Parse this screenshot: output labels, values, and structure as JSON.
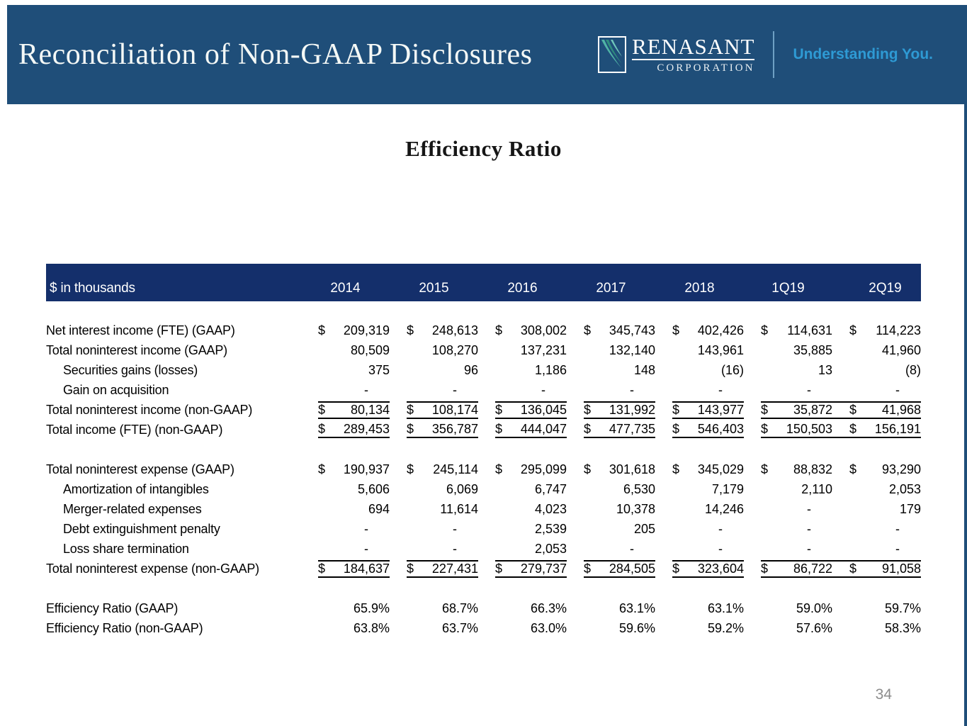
{
  "banner": {
    "title": "Reconciliation of Non-GAAP Disclosures"
  },
  "logo": {
    "brand": "RENASANT",
    "brand_sub": "CORPORATION",
    "tagline": "Understanding You.",
    "mark": "feather-swoosh-icon"
  },
  "section_title": "Efficiency Ratio",
  "page_number": "34",
  "colors": {
    "banner_blue": "#1F4E79",
    "table_header_navy": "#142F6B",
    "tagline_blue": "#2E9AD4",
    "logo_teal": "#4FB3A5",
    "page_number_gray": "#8C8C8C"
  },
  "table": {
    "unit_label": "$ in thousands",
    "columns": [
      "2014",
      "2015",
      "2016",
      "2017",
      "2018",
      "1Q19",
      "2Q19"
    ],
    "rows": [
      {
        "label": "Net interest income (FTE) (GAAP)",
        "indent": false,
        "dollar": true,
        "style": "none",
        "values": [
          "209,319",
          "248,613",
          "308,002",
          "345,743",
          "402,426",
          "114,631",
          "114,223"
        ]
      },
      {
        "label": "Total noninterest income (GAAP)",
        "indent": false,
        "dollar": false,
        "style": "none",
        "values": [
          "80,509",
          "108,270",
          "137,231",
          "132,140",
          "143,961",
          "35,885",
          "41,960"
        ]
      },
      {
        "label": "Securities gains (losses)",
        "indent": true,
        "dollar": false,
        "style": "none",
        "values": [
          "375",
          "96",
          "1,186",
          "148",
          "(16)",
          "13",
          "(8)"
        ]
      },
      {
        "label": "Gain on acquisition",
        "indent": true,
        "dollar": false,
        "style": "none",
        "values": [
          "-",
          "-",
          "-",
          "-",
          "-",
          "-",
          "-"
        ]
      },
      {
        "label": "Total noninterest income (non-GAAP)",
        "indent": false,
        "dollar": true,
        "style": "top-bottom",
        "values": [
          "80,134",
          "108,174",
          "136,045",
          "131,992",
          "143,977",
          "35,872",
          "41,968"
        ]
      },
      {
        "label": "Total income (FTE) (non-GAAP)",
        "indent": false,
        "dollar": true,
        "style": "bottom",
        "values": [
          "289,453",
          "356,787",
          "444,047",
          "477,735",
          "546,403",
          "150,503",
          "156,191"
        ]
      },
      {
        "label": "",
        "spacer": true
      },
      {
        "label": "Total noninterest expense (GAAP)",
        "indent": false,
        "dollar": true,
        "style": "none",
        "values": [
          "190,937",
          "245,114",
          "295,099",
          "301,618",
          "345,029",
          "88,832",
          "93,290"
        ]
      },
      {
        "label": "Amortization of intangibles",
        "indent": true,
        "dollar": false,
        "style": "none",
        "values": [
          "5,606",
          "6,069",
          "6,747",
          "6,530",
          "7,179",
          "2,110",
          "2,053"
        ]
      },
      {
        "label": "Merger-related expenses",
        "indent": true,
        "dollar": false,
        "style": "none",
        "values": [
          "694",
          "11,614",
          "4,023",
          "10,378",
          "14,246",
          "-",
          "179"
        ]
      },
      {
        "label": "Debt extinguishment penalty",
        "indent": true,
        "dollar": false,
        "style": "none",
        "values": [
          "-",
          "-",
          "2,539",
          "205",
          "-",
          "-",
          "-"
        ]
      },
      {
        "label": "Loss share termination",
        "indent": true,
        "dollar": false,
        "style": "none",
        "values": [
          "-",
          "-",
          "2,053",
          "-",
          "-",
          "-",
          "-"
        ]
      },
      {
        "label": "Total noninterest expense (non-GAAP)",
        "indent": false,
        "dollar": true,
        "style": "top-bottom",
        "values": [
          "184,637",
          "227,431",
          "279,737",
          "284,505",
          "323,604",
          "86,722",
          "91,058"
        ]
      },
      {
        "label": "",
        "spacer": true
      },
      {
        "label": "Efficiency Ratio (GAAP)",
        "indent": false,
        "dollar": false,
        "style": "none",
        "values": [
          "65.9%",
          "68.7%",
          "66.3%",
          "63.1%",
          "63.1%",
          "59.0%",
          "59.7%"
        ]
      },
      {
        "label": "Efficiency Ratio (non-GAAP)",
        "indent": false,
        "dollar": false,
        "style": "none",
        "values": [
          "63.8%",
          "63.7%",
          "63.0%",
          "59.6%",
          "59.2%",
          "57.6%",
          "58.3%"
        ]
      }
    ]
  }
}
